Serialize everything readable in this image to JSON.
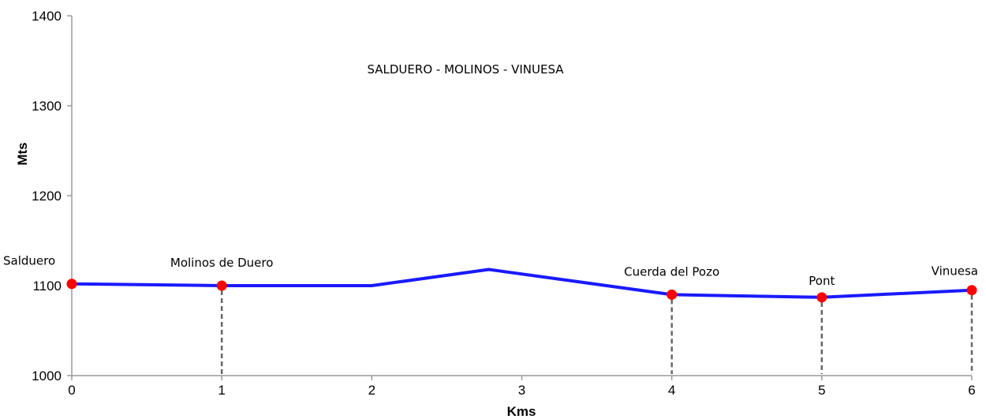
{
  "chart_data": {
    "type": "line",
    "title": "SALDUERO - MOLINOS - VINUESA",
    "xlabel": "Kms",
    "ylabel": "Mts",
    "xlim": [
      0,
      6
    ],
    "ylim": [
      1000,
      1400
    ],
    "x_ticks": [
      "0",
      "1",
      "2",
      "3",
      "4",
      "5",
      "6"
    ],
    "y_ticks": [
      "1000",
      "1100",
      "1200",
      "1300",
      "1400"
    ],
    "grid": false,
    "colors": {
      "line": "#1a1aff",
      "marker": "#ff0000",
      "dropline": "#666666"
    },
    "series": [
      {
        "x": [
          0,
          1,
          2,
          2.78,
          4,
          5,
          6
        ],
        "y": [
          1102,
          1100,
          1100,
          1118,
          1090,
          1087,
          1095
        ]
      }
    ],
    "waypoints": [
      {
        "label": "Salduero",
        "x": 0,
        "y": 1102
      },
      {
        "label": "Molinos de Duero",
        "x": 1,
        "y": 1100
      },
      {
        "label": "Cuerda del Pozo",
        "x": 4,
        "y": 1090
      },
      {
        "label": "Pont",
        "x": 5,
        "y": 1087
      },
      {
        "label": "Vinuesa",
        "x": 6,
        "y": 1095
      }
    ]
  }
}
